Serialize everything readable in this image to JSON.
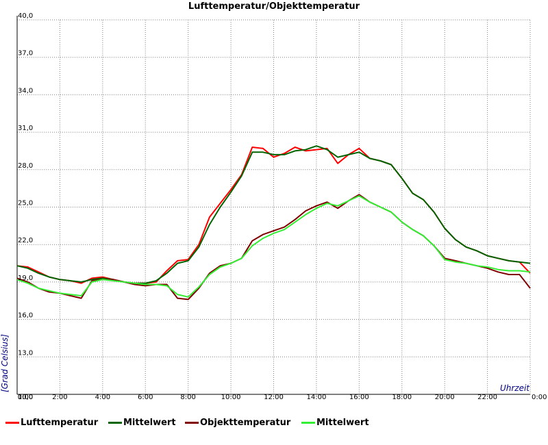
{
  "chart_data": {
    "type": "line",
    "title": "Lufttemperatur/Objekttemperatur",
    "xlabel": "Uhrzeit",
    "ylabel": "[Grad Celsius]",
    "xlim": [
      0,
      24
    ],
    "ylim": [
      10,
      40
    ],
    "x_ticks": [
      "0:00",
      "2:00",
      "4:00",
      "6:00",
      "8:00",
      "10:00",
      "12:00",
      "14:00",
      "16:00",
      "18:00",
      "20:00",
      "22:00",
      "0:00"
    ],
    "x_tick_values": [
      0,
      2,
      4,
      6,
      8,
      10,
      12,
      14,
      16,
      18,
      20,
      22,
      24
    ],
    "y_ticks": [
      "10,0",
      "13,0",
      "16,0",
      "19,0",
      "22,0",
      "25,0",
      "28,0",
      "31,0",
      "34,0",
      "37,0",
      "40,0"
    ],
    "y_tick_values": [
      10,
      13,
      16,
      19,
      22,
      25,
      28,
      31,
      34,
      37,
      40
    ],
    "grid": true,
    "legend_position": "bottom",
    "series": [
      {
        "name": "Lufttemperatur",
        "color": "#ff0000",
        "x": [
          0,
          0.5,
          1,
          1.5,
          2,
          2.5,
          3,
          3.5,
          4,
          4.5,
          5,
          5.5,
          6,
          6.5,
          7,
          7.5,
          8,
          8.5,
          9,
          9.5,
          10,
          10.5,
          11,
          11.5,
          12,
          12.5,
          13,
          13.5,
          14,
          14.5,
          15,
          15.5,
          16,
          16.5,
          17,
          17.5,
          18,
          18.5,
          19,
          19.5,
          20,
          20.5,
          21,
          21.5,
          22,
          22.5,
          23,
          23.5,
          24
        ],
        "values": [
          20.3,
          20.2,
          19.8,
          19.4,
          19.2,
          19.1,
          18.9,
          19.3,
          19.4,
          19.2,
          19.0,
          18.9,
          18.9,
          19.0,
          19.9,
          20.7,
          20.8,
          22.0,
          24.2,
          25.3,
          26.4,
          27.6,
          29.8,
          29.7,
          29.0,
          29.3,
          29.8,
          29.5,
          29.6,
          29.7,
          28.5,
          29.2,
          29.7,
          28.9,
          28.7,
          28.4,
          27.3,
          26.1,
          25.6,
          24.6,
          23.3,
          22.4,
          21.8,
          21.5,
          21.1,
          20.9,
          20.7,
          20.6,
          19.7
        ]
      },
      {
        "name": "Mittelwert",
        "color": "#006400",
        "x": [
          0,
          0.5,
          1,
          1.5,
          2,
          2.5,
          3,
          3.5,
          4,
          4.5,
          5,
          5.5,
          6,
          6.5,
          7,
          7.5,
          8,
          8.5,
          9,
          9.5,
          10,
          10.5,
          11,
          11.5,
          12,
          12.5,
          13,
          13.5,
          14,
          14.5,
          15,
          15.5,
          16,
          16.5,
          17,
          17.5,
          18,
          18.5,
          19,
          19.5,
          20,
          20.5,
          21,
          21.5,
          22,
          22.5,
          23,
          23.5,
          24
        ],
        "values": [
          20.3,
          20.1,
          19.7,
          19.4,
          19.2,
          19.1,
          19.0,
          19.2,
          19.3,
          19.2,
          19.0,
          18.9,
          18.9,
          19.1,
          19.7,
          20.5,
          20.7,
          21.8,
          23.6,
          25.0,
          26.2,
          27.5,
          29.4,
          29.4,
          29.2,
          29.2,
          29.5,
          29.6,
          29.9,
          29.6,
          29.0,
          29.2,
          29.4,
          28.9,
          28.7,
          28.4,
          27.3,
          26.1,
          25.6,
          24.6,
          23.3,
          22.4,
          21.8,
          21.5,
          21.1,
          20.9,
          20.7,
          20.6,
          20.5
        ]
      },
      {
        "name": "Objekttemperatur",
        "color": "#800000",
        "x": [
          0,
          0.5,
          1,
          1.5,
          2,
          2.5,
          3,
          3.5,
          4,
          4.5,
          5,
          5.5,
          6,
          6.5,
          7,
          7.5,
          8,
          8.5,
          9,
          9.5,
          10,
          10.5,
          11,
          11.5,
          12,
          12.5,
          13,
          13.5,
          14,
          14.5,
          15,
          15.5,
          16,
          16.5,
          17,
          17.5,
          18,
          18.5,
          19,
          19.5,
          20,
          20.5,
          21,
          21.5,
          22,
          22.5,
          23,
          23.5,
          24
        ],
        "values": [
          19.3,
          19.0,
          18.5,
          18.2,
          18.1,
          17.9,
          17.7,
          19.1,
          19.2,
          19.2,
          19.0,
          18.8,
          18.7,
          18.8,
          18.8,
          17.7,
          17.6,
          18.5,
          19.7,
          20.3,
          20.5,
          20.9,
          22.3,
          22.8,
          23.1,
          23.4,
          24.0,
          24.7,
          25.1,
          25.4,
          24.9,
          25.5,
          26.0,
          25.4,
          25.0,
          24.6,
          23.8,
          23.2,
          22.7,
          21.9,
          20.9,
          20.7,
          20.5,
          20.3,
          20.1,
          19.8,
          19.6,
          19.6,
          18.5
        ]
      },
      {
        "name": "Mittelwert",
        "color": "#33ee33",
        "x": [
          0,
          0.5,
          1,
          1.5,
          2,
          2.5,
          3,
          3.5,
          4,
          4.5,
          5,
          5.5,
          6,
          6.5,
          7,
          7.5,
          8,
          8.5,
          9,
          9.5,
          10,
          10.5,
          11,
          11.5,
          12,
          12.5,
          13,
          13.5,
          14,
          14.5,
          15,
          15.5,
          16,
          16.5,
          17,
          17.5,
          18,
          18.5,
          19,
          19.5,
          20,
          20.5,
          21,
          21.5,
          22,
          22.5,
          23,
          23.5,
          24
        ],
        "values": [
          19.2,
          18.9,
          18.5,
          18.3,
          18.1,
          18.0,
          17.9,
          19.0,
          19.2,
          19.1,
          19.0,
          18.9,
          18.8,
          18.8,
          18.7,
          18.0,
          17.8,
          18.6,
          19.6,
          20.2,
          20.5,
          20.9,
          21.9,
          22.5,
          22.9,
          23.2,
          23.8,
          24.4,
          24.9,
          25.3,
          25.1,
          25.5,
          25.9,
          25.4,
          25.0,
          24.6,
          23.8,
          23.2,
          22.7,
          21.9,
          20.8,
          20.6,
          20.5,
          20.3,
          20.2,
          20.0,
          19.9,
          19.9,
          19.8
        ]
      }
    ]
  },
  "colors": {
    "title": "#000000",
    "axis_label": "#000080",
    "grid": "#808080"
  }
}
